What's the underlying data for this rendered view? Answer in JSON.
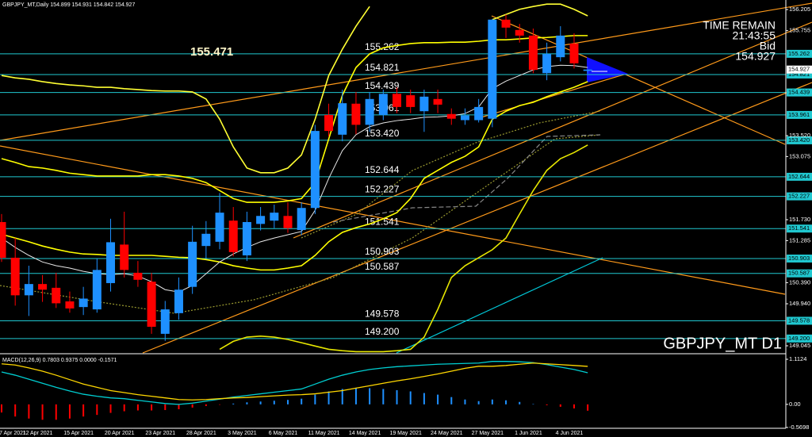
{
  "chart_data": [
    {
      "type": "candlestick",
      "title": "GBPJPY_MT,Daily 154.899 154.931 154.842 154.927",
      "watermark": "GBPJPY_MT D1",
      "annotation": "155.471",
      "timer_label": "TIME REMAIN",
      "timer": "21:43:55",
      "bid_label": "Bid",
      "bid": 154.927,
      "up_color": "#1e90ff",
      "down_color": "#ff0000",
      "open": [
        151.68,
        150.92,
        150.12,
        150.36,
        150.28,
        149.99,
        149.87,
        149.82,
        150.38,
        151.2,
        150.6,
        150.41,
        149.3,
        149.74,
        150.3,
        151.17,
        151.26,
        151.71,
        150.97,
        151.64,
        151.71,
        151.81,
        151.51,
        151.98,
        153.96,
        153.54,
        154.2,
        153.75,
        153.96,
        154.41,
        154.38,
        154.04,
        154.3,
        153.98,
        153.85,
        153.85,
        153.88,
        155.99,
        155.77,
        155.65,
        154.85,
        155.19,
        155.48,
        154.899
      ],
      "high": [
        151.85,
        151.34,
        150.75,
        150.55,
        150.6,
        150.2,
        150.3,
        150.9,
        151.75,
        151.9,
        150.85,
        150.6,
        150.0,
        150.5,
        151.6,
        151.7,
        152.3,
        152.0,
        151.9,
        152.0,
        152.05,
        152.1,
        152.1,
        153.75,
        154.2,
        154.5,
        154.45,
        154.45,
        154.5,
        154.55,
        154.5,
        154.5,
        154.5,
        154.1,
        154.1,
        154.3,
        156.0,
        156.1,
        155.9,
        155.8,
        155.5,
        155.85,
        155.7,
        154.931
      ],
      "low": [
        150.83,
        149.9,
        149.68,
        149.98,
        149.85,
        149.75,
        149.7,
        149.75,
        150.2,
        150.5,
        150.3,
        149.3,
        149.15,
        149.6,
        150.15,
        150.9,
        151.1,
        150.95,
        150.85,
        151.5,
        151.55,
        151.45,
        151.4,
        151.85,
        153.5,
        153.4,
        153.55,
        153.6,
        153.85,
        154.0,
        154.0,
        153.6,
        154.0,
        153.75,
        153.75,
        153.8,
        153.7,
        155.6,
        155.5,
        154.85,
        154.7,
        155.1,
        154.95,
        154.842
      ],
      "close": [
        150.92,
        150.12,
        150.36,
        150.24,
        149.95,
        149.84,
        150.05,
        150.66,
        151.25,
        150.66,
        150.45,
        149.45,
        149.82,
        150.24,
        151.26,
        151.43,
        151.88,
        151.04,
        151.68,
        151.81,
        151.88,
        151.55,
        151.98,
        153.62,
        153.62,
        154.21,
        153.75,
        154.3,
        154.41,
        154.13,
        154.13,
        154.35,
        154.18,
        153.88,
        153.95,
        154.13,
        155.99,
        155.82,
        155.65,
        154.92,
        155.26,
        155.65,
        155.06,
        154.927
      ],
      "overlays": [
        {
          "color": "#ffff33",
          "values": [
            154.8,
            154.75,
            154.72,
            154.67,
            154.63,
            154.6,
            154.58,
            154.55,
            154.55,
            154.52,
            154.5,
            154.48,
            154.47,
            154.47,
            154.45,
            154.3,
            153.87,
            153.28,
            152.83,
            152.73,
            152.73,
            152.83,
            153.11,
            153.87,
            154.8,
            155.36,
            155.85,
            156.27,
            null,
            null,
            null,
            null,
            null,
            null,
            null,
            null,
            155.99,
            156.1,
            156.21,
            156.27,
            156.32,
            156.32,
            156.21,
            156.07
          ]
        },
        {
          "color": "#ffff00",
          "values": [
            153.03,
            152.95,
            152.86,
            152.83,
            152.78,
            152.72,
            152.69,
            152.66,
            152.66,
            152.66,
            152.66,
            152.69,
            152.69,
            152.66,
            152.61,
            152.52,
            152.35,
            152.18,
            152.1,
            152.1,
            152.1,
            152.13,
            152.18,
            152.52,
            153.45,
            154.38,
            154.97,
            155.26,
            155.39,
            155.44,
            155.48,
            155.5,
            155.5,
            155.51,
            155.51,
            155.53,
            155.56,
            155.56,
            155.58,
            155.6,
            155.61,
            155.63,
            155.65,
            155.65
          ]
        },
        {
          "color": "#ffff00",
          "values": [
            151.42,
            151.34,
            151.26,
            151.17,
            151.1,
            151.04,
            151.0,
            150.99,
            150.97,
            150.97,
            150.97,
            150.97,
            150.95,
            150.93,
            150.92,
            150.88,
            150.83,
            150.75,
            150.7,
            150.66,
            150.66,
            150.7,
            150.75,
            150.97,
            151.26,
            151.46,
            151.56,
            151.64,
            151.75,
            151.88,
            152.18,
            152.61,
            152.78,
            152.95,
            153.08,
            153.28,
            153.87,
            154.04,
            154.16,
            154.23,
            154.35,
            154.45,
            154.55,
            154.67
          ]
        },
        {
          "color": "#e6e600",
          "values": [
            null,
            null,
            null,
            null,
            null,
            null,
            null,
            null,
            null,
            null,
            null,
            null,
            null,
            null,
            null,
            null,
            148.97,
            149.14,
            149.23,
            149.25,
            149.23,
            149.18,
            149.11,
            149.04,
            148.97,
            148.94,
            148.92,
            148.92,
            148.92,
            148.94,
            148.97,
            149.23,
            149.82,
            150.5,
            150.75,
            150.92,
            151.09,
            151.34,
            151.85,
            152.35,
            152.78,
            153.03,
            153.16,
            153.32
          ]
        },
        {
          "color": "#e8e8e8",
          "values": [
            151.34,
            151.14,
            150.97,
            150.83,
            150.75,
            150.7,
            150.63,
            150.58,
            150.56,
            150.58,
            150.53,
            150.41,
            150.24,
            150.19,
            150.33,
            150.58,
            150.83,
            151.0,
            151.14,
            151.26,
            151.34,
            151.41,
            151.48,
            151.93,
            152.61,
            153.2,
            153.54,
            153.71,
            153.79,
            153.84,
            153.87,
            153.91,
            153.92,
            153.94,
            153.99,
            154.13,
            154.52,
            154.68,
            154.8,
            154.92,
            154.99,
            155.02,
            155.01,
            154.97
          ]
        }
      ],
      "levels": [
        155.262,
        154.821,
        154.439,
        153.961,
        {
          "value": 153.42,
          "label": "153.420"
        },
        152.644,
        152.227,
        151.541,
        150.903,
        150.587,
        149.578,
        {
          "value": 149.2,
          "label": "149.200"
        }
      ],
      "level_color": "#20c8d0",
      "ylim": [
        148.893,
        156.408
      ],
      "yticks": [
        156.205,
        155.755,
        {
          "value": 153.52,
          "label": "153.520"
        },
        153.075,
        {
          "value": 151.73,
          "label": "151.730"
        },
        151.285,
        {
          "value": 150.39,
          "label": "150.390"
        },
        {
          "value": 149.94,
          "label": "149.940"
        },
        149.045
      ]
    },
    {
      "type": "macd",
      "title": "MACD(12,26,9) 0.7803 0.9375 0.0000 -0.1571",
      "categories": [
        "7 Apr 2021",
        null,
        null,
        "12 Apr 2021",
        null,
        null,
        "15 Apr 2021",
        null,
        null,
        "20 Apr 2021",
        null,
        null,
        "23 Apr 2021",
        null,
        null,
        "28 Apr 2021",
        null,
        null,
        "3 May 2021",
        null,
        null,
        "6 May 2021",
        null,
        null,
        "11 May 2021",
        null,
        null,
        "14 May 2021",
        null,
        null,
        "19 May 2021",
        null,
        null,
        "24 May 2021",
        null,
        null,
        "27 May 2021",
        null,
        null,
        "1 Jun 2021",
        null,
        null,
        "4 Jun 2021",
        null
      ],
      "values": [
        -0.2,
        -0.3,
        -0.35,
        -0.38,
        -0.38,
        -0.35,
        -0.3,
        -0.26,
        -0.21,
        -0.17,
        -0.15,
        -0.15,
        -0.14,
        -0.12,
        -0.08,
        -0.04,
        -0.01,
        0.02,
        0.05,
        0.07,
        0.09,
        0.11,
        0.14,
        0.24,
        0.32,
        0.38,
        0.4,
        0.4,
        0.38,
        0.35,
        0.32,
        0.28,
        0.24,
        0.18,
        0.12,
        0.08,
        0.12,
        0.1,
        0.06,
        0.01,
        -0.02,
        -0.06,
        -0.1,
        -0.1571
      ],
      "up_color": "#1e90ff",
      "down_color": "#ff0000",
      "series": [
        {
          "color": "#00ced1",
          "values": [
            0.8,
            0.72,
            0.62,
            0.52,
            0.42,
            0.33,
            0.25,
            0.2,
            0.16,
            0.14,
            0.1,
            0.06,
            0.02,
            0.0,
            0.03,
            0.08,
            0.13,
            0.18,
            0.22,
            0.26,
            0.3,
            0.34,
            0.38,
            0.5,
            0.62,
            0.72,
            0.8,
            0.86,
            0.9,
            0.93,
            0.95,
            0.97,
            0.99,
            1.0,
            1.01,
            1.02,
            1.06,
            1.06,
            1.05,
            1.03,
            0.98,
            0.92,
            0.86,
            0.7803
          ]
        },
        {
          "color": "#ffd700",
          "values": [
            1.0,
            0.97,
            0.9,
            0.82,
            0.72,
            0.61,
            0.5,
            0.42,
            0.34,
            0.29,
            0.24,
            0.2,
            0.16,
            0.12,
            0.11,
            0.12,
            0.14,
            0.16,
            0.17,
            0.19,
            0.21,
            0.23,
            0.24,
            0.26,
            0.3,
            0.34,
            0.4,
            0.46,
            0.52,
            0.58,
            0.63,
            0.69,
            0.75,
            0.82,
            0.89,
            0.94,
            0.94,
            0.96,
            0.99,
            1.02,
            1.0,
            0.98,
            0.96,
            0.9375
          ]
        }
      ],
      "ylim": [
        -0.59,
        1.23
      ],
      "yticks": [
        1.1124,
        {
          "value": 0,
          "label": "0.00"
        },
        -0.5698
      ]
    }
  ]
}
